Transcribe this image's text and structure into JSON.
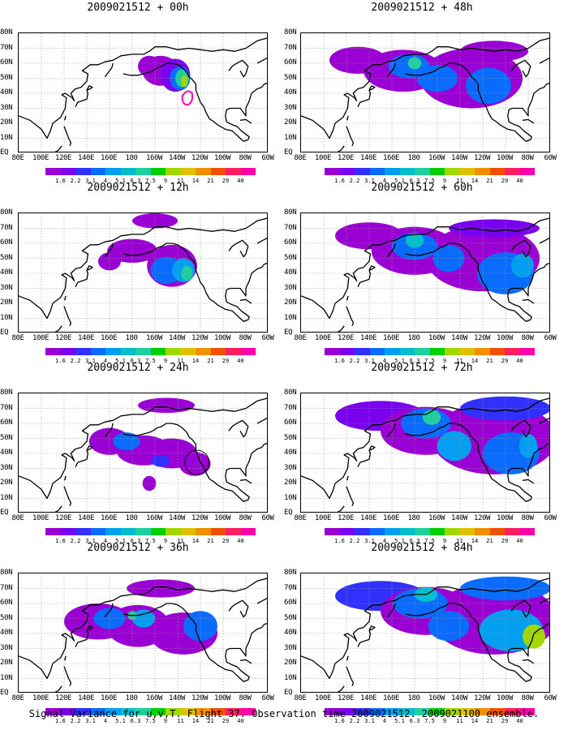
{
  "panels": [
    {
      "title": "2009021512 + 00h",
      "id": "p0",
      "hasRing": true
    },
    {
      "title": "2009021512 + 48h",
      "id": "p48"
    },
    {
      "title": "2009021512 + 12h",
      "id": "p12"
    },
    {
      "title": "2009021512 + 60h",
      "id": "p60"
    },
    {
      "title": "2009021512 + 24h",
      "id": "p24",
      "hasCircle": true
    },
    {
      "title": "2009021512 + 72h",
      "id": "p72"
    },
    {
      "title": "2009021512 + 36h",
      "id": "p36"
    },
    {
      "title": "2009021512 + 84h",
      "id": "p84"
    }
  ],
  "lat_labels": [
    "80N",
    "70N",
    "60N",
    "50N",
    "40N",
    "30N",
    "20N",
    "10N",
    "EQ"
  ],
  "lon_labels": [
    "80E",
    "100E",
    "120E",
    "140E",
    "160E",
    "180",
    "160W",
    "140W",
    "120W",
    "100W",
    "80W",
    "60W"
  ],
  "colorbar": {
    "labels": [
      "1.6",
      "2.2",
      "3.1",
      "4",
      "5.1",
      "6.3",
      "7.5",
      "9",
      "11",
      "14",
      "21",
      "29",
      "40"
    ],
    "colors": [
      "#9a00d4",
      "#7a00f0",
      "#3030ff",
      "#0a6cff",
      "#009ff0",
      "#00bfcc",
      "#20cfa0",
      "#00d000",
      "#a0d800",
      "#e0c000",
      "#f09000",
      "#f05000",
      "#ff1e60",
      "#ff00aa"
    ]
  },
  "footer": "Signal Variance for u,v,T. Flight 37. Observation time 2009021512. 2009021100 ensemble."
}
